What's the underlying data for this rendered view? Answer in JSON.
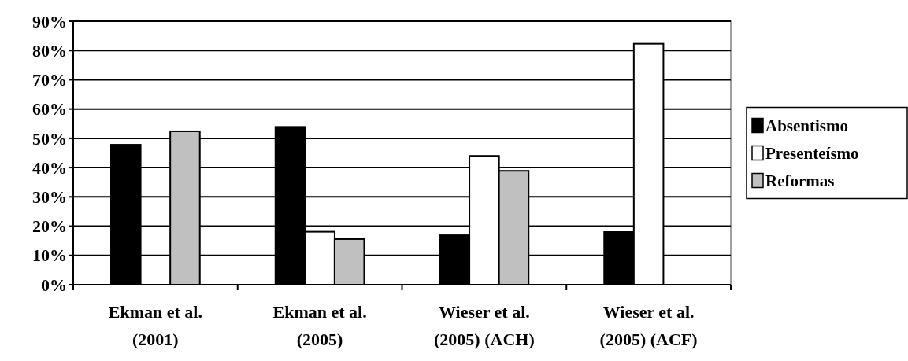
{
  "chart_data": {
    "type": "bar",
    "categories": [
      "Ekman et al.\n(2001)",
      "Ekman et al.\n(2005)",
      "Wieser et al.\n(2005) (ACH)",
      "Wieser et al.\n(2005) (ACF)"
    ],
    "series": [
      {
        "name": "Absentismo",
        "color": "#000000",
        "values": [
          47.8,
          53.9,
          16.9,
          18.0
        ]
      },
      {
        "name": "Presenteísmo",
        "color": "#ffffff",
        "values": [
          null,
          18.1,
          44.0,
          82.3
        ]
      },
      {
        "name": "Reformas",
        "color": "#c0c0c0",
        "values": [
          52.4,
          15.6,
          38.9,
          null
        ]
      }
    ],
    "ylim": [
      0,
      90
    ],
    "yticks": [
      {
        "value": 0,
        "label": "0%"
      },
      {
        "value": 10,
        "label": "10%"
      },
      {
        "value": 20,
        "label": "20%"
      },
      {
        "value": 30,
        "label": "30%"
      },
      {
        "value": 40,
        "label": "40%"
      },
      {
        "value": 50,
        "label": "50%"
      },
      {
        "value": 60,
        "label": "60%"
      },
      {
        "value": 70,
        "label": "70%"
      },
      {
        "value": 80,
        "label": "80%"
      },
      {
        "value": 90,
        "label": "90%"
      }
    ],
    "grid": "y",
    "legend": "right"
  }
}
